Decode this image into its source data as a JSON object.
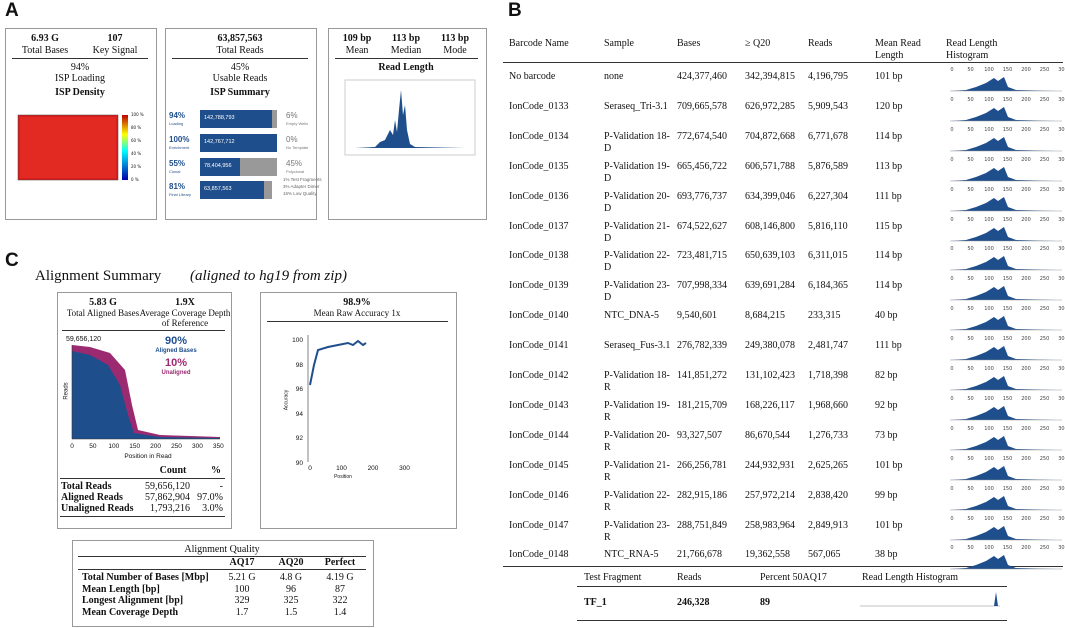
{
  "panel_a": {
    "label": "A",
    "isp_density": {
      "stats": [
        {
          "value": "6.93 G",
          "label": "Total Bases"
        },
        {
          "value": "107",
          "label": "Key Signal"
        }
      ],
      "percent": "94%",
      "percent_label": "ISP Loading",
      "title": "ISP Density",
      "colorbar": [
        "100 %",
        "80 %",
        "60 %",
        "40 %",
        "20 %",
        "0 %"
      ]
    },
    "isp_summary": {
      "total": "63,857,563",
      "total_label": "Total Reads",
      "percent": "45%",
      "percent_label": "Usable Reads",
      "title": "ISP Summary",
      "rows": [
        {
          "percent": "94%",
          "label": "Loading",
          "count": "142,788,793",
          "right_percent": "6%",
          "right_label": "Empty Wells"
        },
        {
          "percent": "100%",
          "label": "Enrichment",
          "count": "142,767,712",
          "right_percent": "0%",
          "right_label": "No Template"
        },
        {
          "percent": "55%",
          "label": "Clonal",
          "count": "78,404,956",
          "right_percent": "45%",
          "right_label": "Polyclonal"
        },
        {
          "percent": "81%",
          "label": "Final Library",
          "count": "63,857,563"
        }
      ],
      "notes": [
        "1% Test Fragments",
        "3% Adapter Dimer",
        "16% Low Quality"
      ]
    },
    "read_length": {
      "stats": [
        {
          "value": "109 bp",
          "label": "Mean"
        },
        {
          "value": "113 bp",
          "label": "Median"
        },
        {
          "value": "113 bp",
          "label": "Mode"
        }
      ],
      "title": "Read Length"
    }
  },
  "panel_b": {
    "label": "B",
    "columns": [
      "Barcode Name",
      "Sample",
      "Bases",
      "≥ Q20",
      "Reads",
      "Mean Read Length",
      "Read Length Histogram"
    ],
    "histogram_axis": [
      "0",
      "50",
      "100",
      "150",
      "200",
      "250",
      "300"
    ],
    "rows": [
      [
        "No barcode",
        "none",
        "424,377,460",
        "342,394,815",
        "4,196,795",
        "101 bp"
      ],
      [
        "IonCode_0133",
        "Seraseq_Tri-3.1",
        "709,665,578",
        "626,972,285",
        "5,909,543",
        "120 bp"
      ],
      [
        "IonCode_0134",
        "P-Validation 18-D",
        "772,674,540",
        "704,872,668",
        "6,771,678",
        "114 bp"
      ],
      [
        "IonCode_0135",
        "P-Validation 19-D",
        "665,456,722",
        "606,571,788",
        "5,876,589",
        "113 bp"
      ],
      [
        "IonCode_0136",
        "P-Validation 20-D",
        "693,776,737",
        "634,399,046",
        "6,227,304",
        "111 bp"
      ],
      [
        "IonCode_0137",
        "P-Validation 21-D",
        "674,522,627",
        "608,146,800",
        "5,816,110",
        "115 bp"
      ],
      [
        "IonCode_0138",
        "P-Validation 22-D",
        "723,481,715",
        "650,639,103",
        "6,311,015",
        "114 bp"
      ],
      [
        "IonCode_0139",
        "P-Validation 23-D",
        "707,998,334",
        "639,691,284",
        "6,184,365",
        "114 bp"
      ],
      [
        "IonCode_0140",
        "NTC_DNA-5",
        "9,540,601",
        "8,684,215",
        "233,315",
        "40 bp"
      ],
      [
        "IonCode_0141",
        "Seraseq_Fus-3.1",
        "276,782,339",
        "249,380,078",
        "2,481,747",
        "111 bp"
      ],
      [
        "IonCode_0142",
        "P-Validation 18-R",
        "141,851,272",
        "131,102,423",
        "1,718,398",
        "82 bp"
      ],
      [
        "IonCode_0143",
        "P-Validation 19-R",
        "181,215,709",
        "168,226,117",
        "1,968,660",
        "92 bp"
      ],
      [
        "IonCode_0144",
        "P-Validation 20-R",
        "93,327,507",
        "86,670,544",
        "1,276,733",
        "73 bp"
      ],
      [
        "IonCode_0145",
        "P-Validation 21-R",
        "266,256,781",
        "244,932,931",
        "2,625,265",
        "101 bp"
      ],
      [
        "IonCode_0146",
        "P-Validation 22-R",
        "282,915,186",
        "257,972,214",
        "2,838,420",
        "99 bp"
      ],
      [
        "IonCode_0147",
        "P-Validation 23-R",
        "288,751,849",
        "258,983,964",
        "2,849,913",
        "101 bp"
      ],
      [
        "IonCode_0148",
        "NTC_RNA-5",
        "21,766,678",
        "19,362,558",
        "567,065",
        "38 bp"
      ]
    ],
    "test_fragments": {
      "columns": [
        "Test Fragment",
        "Reads",
        "Percent 50AQ17",
        "Read Length Histogram"
      ],
      "rows": [
        [
          "TF_1",
          "246,328",
          "89"
        ]
      ]
    }
  },
  "panel_c": {
    "label": "C",
    "title": "Alignment Summary",
    "title_note": "(aligned to hg19 from zip)",
    "coverage": {
      "stats": [
        {
          "value": "5.83 G",
          "label": "Total Aligned Bases"
        },
        {
          "value": "1.9X",
          "label": "Average Coverage Depth of Reference"
        }
      ],
      "peak_label": "59,656,120",
      "aligned_percent": "90%",
      "aligned_label": "Aligned Bases",
      "unaligned_percent": "10%",
      "unaligned_label": "Unaligned",
      "y_label": "Reads",
      "x_label": "Position in Read",
      "x_ticks": [
        "0",
        "50",
        "100",
        "150",
        "200",
        "250",
        "300",
        "350"
      ],
      "table": {
        "columns": [
          "Count",
          "%"
        ],
        "rows": [
          [
            "Total Reads",
            "59,656,120",
            "-"
          ],
          [
            "Aligned Reads",
            "57,862,904",
            "97.0%"
          ],
          [
            "Unaligned Reads",
            "1,793,216",
            "3.0%"
          ]
        ]
      }
    },
    "accuracy": {
      "value": "98.9%",
      "label": "Mean Raw Accuracy 1x",
      "y_label": "Accuracy",
      "x_label": "Position",
      "y_ticks": [
        "100",
        "98",
        "96",
        "94",
        "92",
        "90"
      ],
      "x_ticks": [
        "0",
        "100",
        "200",
        "300"
      ]
    },
    "quality": {
      "title": "Alignment Quality",
      "columns": [
        "AQ17",
        "AQ20",
        "Perfect"
      ],
      "rows": [
        [
          "Total Number of Bases [Mbp]",
          "5.21 G",
          "4.8 G",
          "4.19 G"
        ],
        [
          "Mean Length [bp]",
          "100",
          "96",
          "87"
        ],
        [
          "Longest Alignment [bp]",
          "329",
          "325",
          "322"
        ],
        [
          "Mean Coverage Depth",
          "1.7",
          "1.5",
          "1.4"
        ]
      ]
    }
  }
}
